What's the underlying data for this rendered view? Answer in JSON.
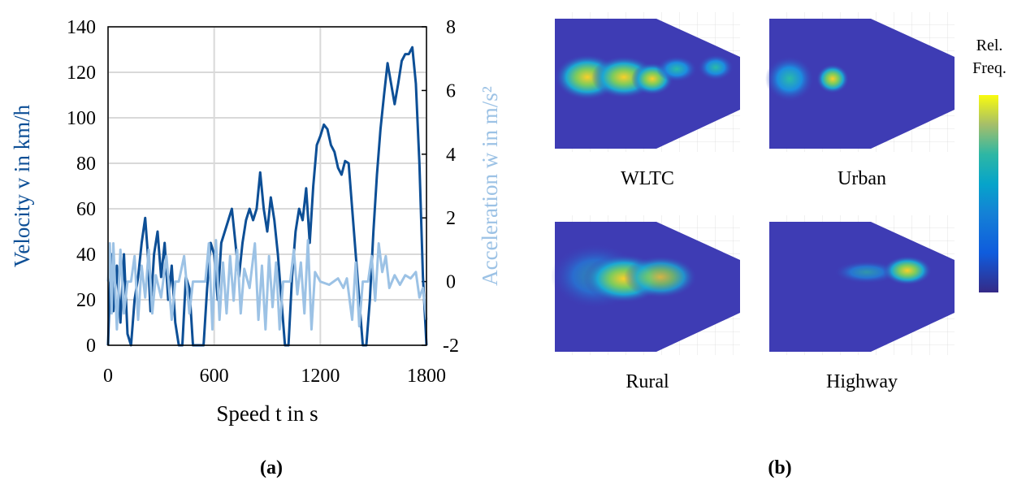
{
  "chart_data": [
    {
      "type": "line",
      "xlabel": "Speed t in s",
      "ylabel": "Velocity v in km/h",
      "y2label": "Acceleration ẇ in m/s²",
      "caption": "(a)",
      "xlim": [
        0,
        1800
      ],
      "xticks": [
        0,
        600,
        1200,
        1800
      ],
      "ylim": [
        0,
        140
      ],
      "yticks": [
        0,
        20,
        40,
        60,
        80,
        100,
        120,
        140
      ],
      "y2lim": [
        -2,
        8
      ],
      "y2ticks": [
        -2,
        0,
        2,
        4,
        6,
        8
      ],
      "grid": true,
      "series": [
        {
          "name": "Velocity",
          "color": "#0d4f96",
          "x": [
            0,
            10,
            20,
            30,
            50,
            70,
            90,
            110,
            130,
            150,
            170,
            190,
            210,
            225,
            240,
            260,
            280,
            300,
            320,
            340,
            360,
            380,
            400,
            420,
            440,
            460,
            480,
            500,
            520,
            540,
            560,
            580,
            600,
            620,
            640,
            660,
            680,
            700,
            720,
            740,
            760,
            780,
            800,
            820,
            840,
            860,
            880,
            900,
            920,
            940,
            960,
            980,
            1000,
            1020,
            1040,
            1060,
            1080,
            1100,
            1120,
            1140,
            1160,
            1180,
            1200,
            1220,
            1240,
            1260,
            1280,
            1300,
            1320,
            1340,
            1360,
            1380,
            1400,
            1420,
            1440,
            1460,
            1480,
            1500,
            1520,
            1540,
            1560,
            1580,
            1600,
            1620,
            1640,
            1660,
            1680,
            1700,
            1720,
            1740,
            1760,
            1780,
            1800
          ],
          "values": [
            0,
            25,
            40,
            15,
            35,
            10,
            40,
            5,
            0,
            20,
            30,
            45,
            56,
            40,
            15,
            40,
            50,
            30,
            45,
            20,
            35,
            10,
            0,
            0,
            30,
            25,
            0,
            0,
            0,
            0,
            25,
            45,
            40,
            20,
            45,
            50,
            55,
            60,
            45,
            30,
            45,
            55,
            60,
            55,
            60,
            76,
            60,
            50,
            65,
            55,
            40,
            20,
            0,
            0,
            30,
            50,
            60,
            55,
            69,
            45,
            70,
            88,
            92,
            97,
            95,
            88,
            85,
            78,
            75,
            81,
            80,
            60,
            40,
            20,
            0,
            0,
            20,
            50,
            75,
            95,
            110,
            124,
            115,
            106,
            115,
            125,
            128,
            128,
            131,
            115,
            80,
            30,
            0
          ]
        },
        {
          "name": "Acceleration",
          "color": "#9cc2e5",
          "axis": "y2",
          "x": [
            0,
            10,
            20,
            30,
            50,
            70,
            90,
            110,
            130,
            150,
            170,
            190,
            210,
            230,
            250,
            270,
            300,
            330,
            360,
            380,
            400,
            430,
            460,
            480,
            550,
            570,
            590,
            610,
            630,
            650,
            670,
            690,
            710,
            730,
            750,
            770,
            800,
            830,
            850,
            870,
            890,
            910,
            930,
            950,
            970,
            990,
            1030,
            1050,
            1070,
            1090,
            1110,
            1130,
            1150,
            1170,
            1200,
            1250,
            1300,
            1330,
            1350,
            1380,
            1400,
            1420,
            1440,
            1470,
            1490,
            1510,
            1530,
            1550,
            1570,
            1590,
            1620,
            1650,
            1680,
            1710,
            1740,
            1760,
            1780,
            1800
          ],
          "values": [
            0,
            1.2,
            -1,
            1.2,
            -1.5,
            1,
            -1,
            0,
            0,
            0.8,
            -1.2,
            0.5,
            -0.5,
            1,
            -1,
            0.2,
            -0.5,
            0.8,
            -1.2,
            0,
            0,
            0.8,
            -1,
            0,
            0,
            1.2,
            -1.5,
            1.3,
            -1.2,
            0.6,
            -1,
            0.8,
            -0.6,
            1,
            -1,
            0.4,
            -0.2,
            1.2,
            -1.2,
            0.5,
            -1.5,
            0.8,
            -0.8,
            0.6,
            -1.5,
            0,
            0,
            1,
            -0.4,
            0.6,
            -1,
            1.3,
            -1.5,
            0.3,
            0,
            -0.1,
            0.1,
            -0.2,
            0.1,
            -1.2,
            0.6,
            -1.4,
            0,
            0,
            0.8,
            -0.6,
            1.2,
            0.3,
            0.8,
            -0.2,
            0.2,
            -0.1,
            0.2,
            0.1,
            0.3,
            -0.5,
            -0.2,
            -1.2
          ]
        }
      ]
    },
    {
      "type": "heatmap",
      "panels": [
        "WLTC",
        "Urban",
        "Rural",
        "Highway"
      ],
      "colorbar_label": [
        "Rel.",
        "Freq."
      ],
      "caption": "(b)"
    }
  ]
}
